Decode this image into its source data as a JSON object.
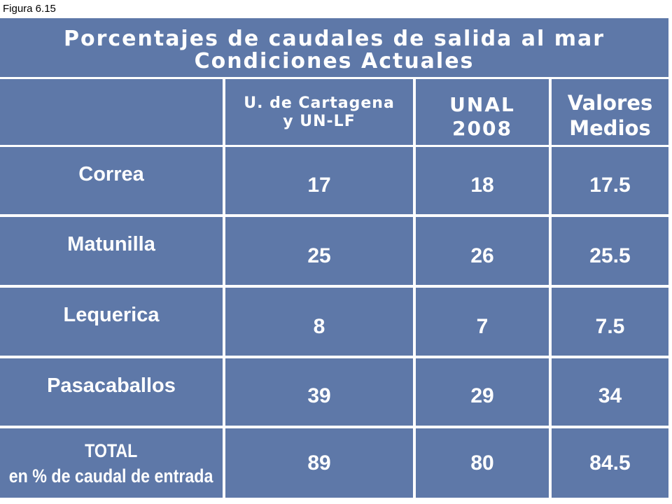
{
  "figure_label": "Figura 6.15",
  "title": {
    "line1": "Porcentajes de caudales de salida al mar",
    "line2": "Condiciones Actuales"
  },
  "columns": [
    {
      "line1": "U. de Cartagena",
      "line2": "y UN-LF"
    },
    {
      "line1": "UNAL",
      "line2": "2008"
    },
    {
      "line1": "Valores",
      "line2": "Medios"
    }
  ],
  "rows": [
    {
      "name": "Correa",
      "values": [
        "17",
        "18",
        "17.5"
      ]
    },
    {
      "name": "Matunilla",
      "values": [
        "25",
        "26",
        "25.5"
      ]
    },
    {
      "name": "Lequerica",
      "values": [
        "8",
        "7",
        "7.5"
      ]
    },
    {
      "name": "Pasacaballos",
      "values": [
        "39",
        "29",
        "34"
      ]
    }
  ],
  "total": {
    "line1": "TOTAL",
    "line2": "en % de caudal de entrada",
    "values": [
      "89",
      "80",
      "84.5"
    ]
  },
  "colors": {
    "cell_fill": "#5e78a8",
    "text": "#ffffff",
    "grid": "#ffffff"
  }
}
